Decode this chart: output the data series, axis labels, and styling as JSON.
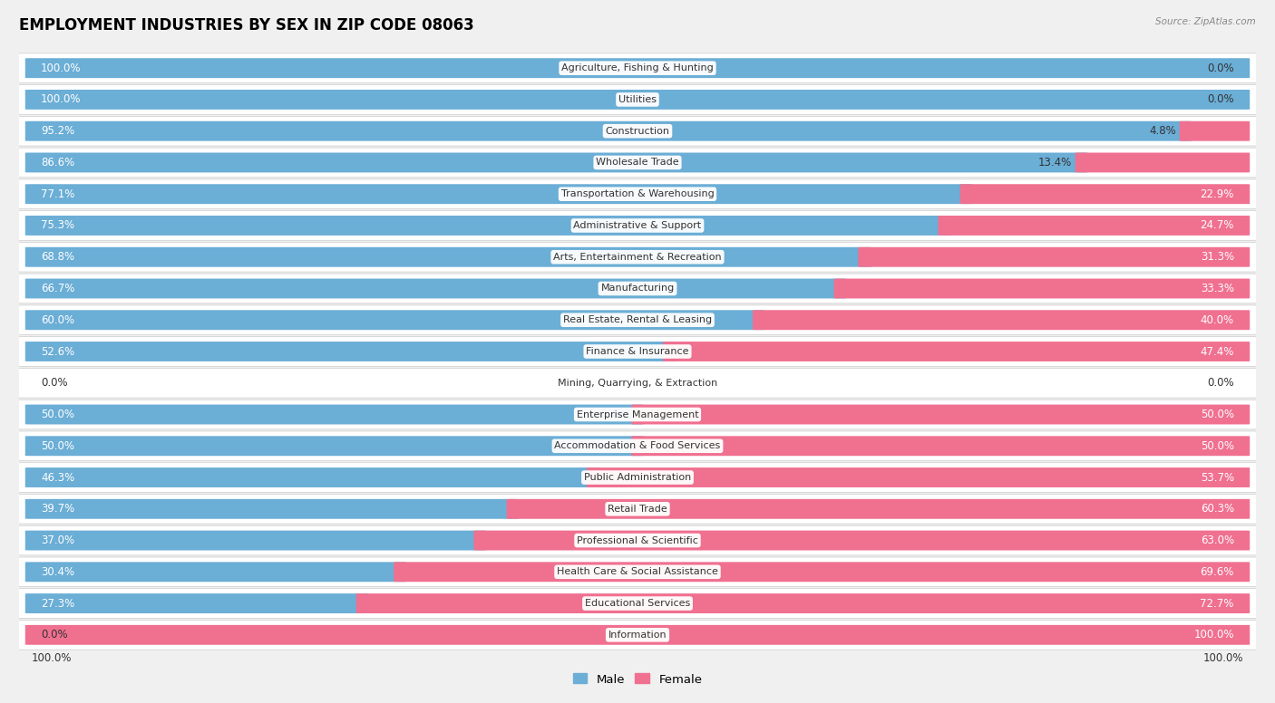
{
  "title": "EMPLOYMENT INDUSTRIES BY SEX IN ZIP CODE 08063",
  "source": "Source: ZipAtlas.com",
  "categories": [
    "Agriculture, Fishing & Hunting",
    "Utilities",
    "Construction",
    "Wholesale Trade",
    "Transportation & Warehousing",
    "Administrative & Support",
    "Arts, Entertainment & Recreation",
    "Manufacturing",
    "Real Estate, Rental & Leasing",
    "Finance & Insurance",
    "Mining, Quarrying, & Extraction",
    "Enterprise Management",
    "Accommodation & Food Services",
    "Public Administration",
    "Retail Trade",
    "Professional & Scientific",
    "Health Care & Social Assistance",
    "Educational Services",
    "Information"
  ],
  "male": [
    100.0,
    100.0,
    95.2,
    86.6,
    77.1,
    75.3,
    68.8,
    66.7,
    60.0,
    52.6,
    0.0,
    50.0,
    50.0,
    46.3,
    39.7,
    37.0,
    30.4,
    27.3,
    0.0
  ],
  "female": [
    0.0,
    0.0,
    4.8,
    13.4,
    22.9,
    24.7,
    31.3,
    33.3,
    40.0,
    47.4,
    0.0,
    50.0,
    50.0,
    53.7,
    60.3,
    63.0,
    69.6,
    72.7,
    100.0
  ],
  "male_color": "#6BAED6",
  "female_color": "#F07090",
  "bg_color": "#f0f0f0",
  "row_bg_color": "#ffffff",
  "title_fontsize": 12,
  "label_fontsize": 8.5,
  "category_fontsize": 8.0,
  "male_label_color_inside": "#ffffff",
  "male_label_color_outside": "#333333",
  "female_label_color_inside": "#ffffff",
  "female_label_color_outside": "#333333",
  "inside_threshold": 0.15
}
